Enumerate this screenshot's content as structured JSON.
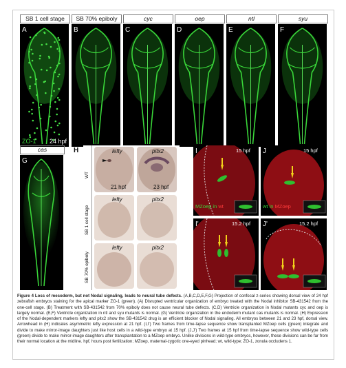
{
  "top_row": {
    "columns": [
      {
        "panel": "A",
        "header": "SB 1 cell stage",
        "italic": false
      },
      {
        "panel": "B",
        "header": "SB 70% epiboly",
        "italic": false
      },
      {
        "panel": "C",
        "header": "cyc",
        "italic": true
      },
      {
        "panel": "D",
        "header": "oep",
        "italic": true
      },
      {
        "panel": "E",
        "header": "ntl",
        "italic": true
      },
      {
        "panel": "F",
        "header": "syu",
        "italic": true
      }
    ],
    "zo1_label": "ZO-1",
    "stage_label": "24 hpf"
  },
  "panel_g": {
    "letter": "G",
    "header": "cas"
  },
  "panel_h": {
    "letter": "H",
    "col_headers": [
      "lefty",
      "pitx2"
    ],
    "row_labels": [
      "WT",
      "SB 1 cell stage",
      "SB 70% epiboly"
    ],
    "stage_left": "21 hpf",
    "stage_right": "23 hpf"
  },
  "panel_ij": {
    "I": {
      "letter": "I",
      "time": "15 hpf",
      "label_green": "MZoep in",
      "label_red": "wt"
    },
    "J": {
      "letter": "J",
      "time": "15 hpf",
      "label_green": "wt in",
      "label_red": "MZoep"
    },
    "I2": {
      "letter": "I'",
      "time": "15.2 hpf"
    },
    "J2": {
      "letter": "J'",
      "time": "15.2 hpf"
    }
  },
  "caption": {
    "title": "Figure 4 Loss of mesoderm, but not Nodal signaling, leads to neural tube defects.",
    "body": "(A,B,C,D,E,F,G) Projection of confocal z-series showing dorsal view of 24 hpf zebrafish embryos staining for the apical marker ZO-1 (green). (A) Disrupted ventricular organization of embryo treated with the Nodal inhibitor SB-431542 from the one-cell stage. (B) Treatment with SB-431542 from 70% epiboly does not cause neural tube defects. (C,D) Ventricle organization in Nodal mutants cyc and oep is largely normal. (E,F) Ventricle organization in ntl and syu mutants is normal. (G) Ventricle organization in the endoderm mutant cas mutants is normal. (H) Expression of the Nodal-dependent markers lefty and pitx2 show the SB-431542 drug is an efficient blocker of Nodal signaling. All embryos between 21 and 23 hpf, dorsal view. Arrowhead in (H) indicates asymmetric lefty expression at 21 hpf. (I,I') Two frames from time-lapse sequence show transplanted MZoep cells (green) integrate and divide to make mirror-image daughters just like host cells in a wild-type embryo at 15 hpf. (J,J') Two frames at 15 hpf from time-lapse sequence show wild-type cells (green) divide to make mirror-image daughters after transplantation to a MZoep embryo. Unlike divisions in wild-type embryos, however, these divisions can be far from their normal location at the midline. hpf, hours post fertilization; MZoep, maternal-zygotic one-eyed pinhead; wt, wild-type; ZO-1, zonula occludens 1."
  },
  "colors": {
    "fluor_green": "#2fbf2f",
    "fluor_red": "#b3131b",
    "arrow": "#f2d21a",
    "embryo": "#c3a79a"
  }
}
